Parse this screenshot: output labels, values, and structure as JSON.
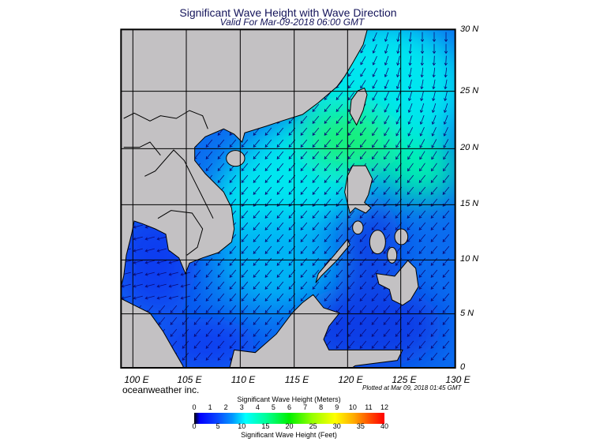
{
  "title": "Significant Wave Height with Wave Direction",
  "subtitle": "Valid For Mar-09-2018 06:00 GMT",
  "lat_labels": [
    "30 N",
    "25 N",
    "20 N",
    "15 N",
    "10 N",
    "5 N",
    "0"
  ],
  "lon_labels": [
    "100 E",
    "105 E",
    "110 E",
    "115 E",
    "120 E",
    "125 E",
    "130 E"
  ],
  "brand": "oceanweather inc.",
  "plotted": "Plotted at Mar 09, 2018 01:45 GMT",
  "colorbar": {
    "meters_title": "Significant Wave Height (Meters)",
    "feet_title": "Significant Wave Height (Feet)",
    "meters_ticks": [
      "0",
      "1",
      "2",
      "3",
      "4",
      "5",
      "6",
      "7",
      "8",
      "9",
      "10",
      "11",
      "12"
    ],
    "feet_ticks": [
      "0",
      "5",
      "10",
      "15",
      "20",
      "25",
      "30",
      "35",
      "40"
    ]
  },
  "colors": {
    "land": "#c3c1c3",
    "ocean_low": "#0a3cf0",
    "ocean_mid": "#0a96f5",
    "ocean_high": "#00f0e6",
    "peak": "#14f078",
    "arrow": "#0a0a78"
  }
}
